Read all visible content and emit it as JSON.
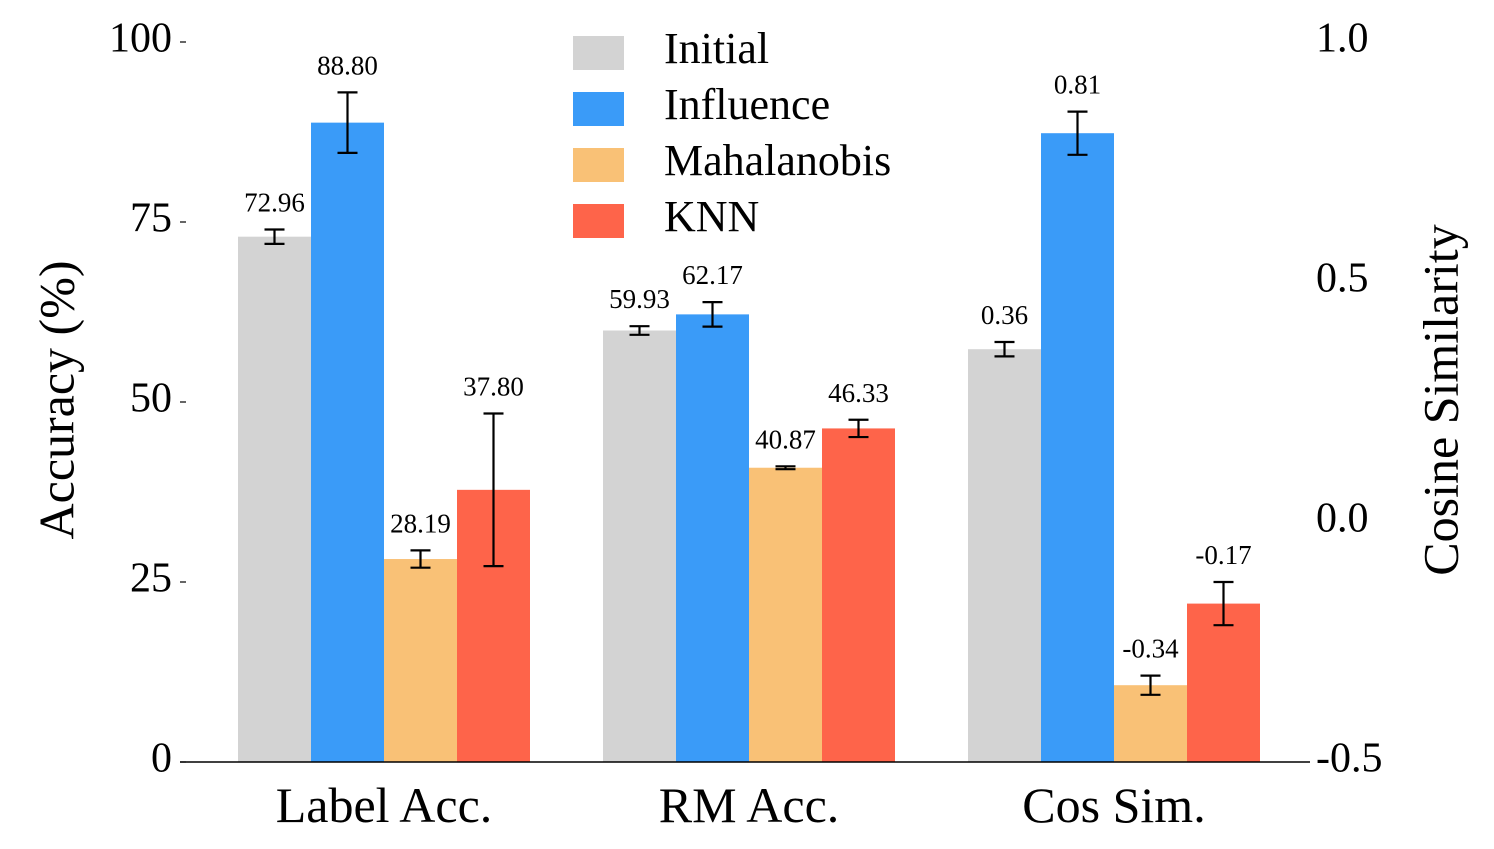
{
  "chart_data": {
    "type": "bar",
    "categories": [
      "Label Acc.",
      "RM Acc.",
      "Cos Sim."
    ],
    "ylabel": "Accuracy (%)",
    "ylabel_right": "Cosine Similarity",
    "ylim": [
      0,
      100
    ],
    "ylim_right": [
      -0.5,
      1.0
    ],
    "yticks": [
      0,
      25,
      50,
      75,
      100
    ],
    "yticks_right": [
      -0.5,
      0.0,
      0.5,
      1.0
    ],
    "ytick_labels_right": [
      "-0.5",
      "0.0",
      "0.5",
      "1.0"
    ],
    "legend_position": "top-center",
    "series": [
      {
        "name": "Initial",
        "color": "#d3d3d3",
        "values": [
          72.96,
          59.93,
          0.36
        ],
        "errors": [
          1.0,
          0.6,
          0.015
        ],
        "labels": [
          "72.96",
          "59.93",
          "0.36"
        ]
      },
      {
        "name": "Influence",
        "color": "#3a9bf8",
        "values": [
          88.8,
          62.17,
          0.81
        ],
        "errors": [
          4.2,
          1.7,
          0.045
        ],
        "labels": [
          "88.80",
          "62.17",
          "0.81"
        ]
      },
      {
        "name": "Mahalanobis",
        "color": "#f9c176",
        "values": [
          28.19,
          40.87,
          -0.34
        ],
        "errors": [
          1.2,
          0.2,
          0.02
        ],
        "labels": [
          "28.19",
          "40.87",
          "-0.34"
        ]
      },
      {
        "name": "KNN",
        "color": "#fe644a",
        "values": [
          37.8,
          46.33,
          -0.17
        ],
        "errors": [
          10.6,
          1.2,
          0.045
        ],
        "labels": [
          "37.80",
          "46.33",
          "-0.17"
        ]
      }
    ]
  }
}
